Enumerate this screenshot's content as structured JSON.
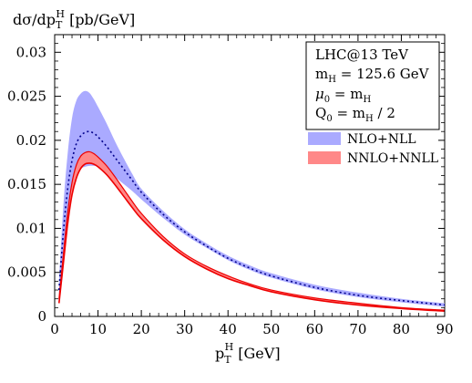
{
  "chart_data": {
    "type": "area",
    "ylabel": "dσ/dp_T^H [pb/GeV]",
    "xlabel": "p_T^H [GeV]",
    "xlim": [
      0,
      90
    ],
    "ylim": [
      0,
      0.032
    ],
    "xticks": [
      0,
      10,
      20,
      30,
      40,
      50,
      60,
      70,
      80,
      90
    ],
    "yticks": [
      0,
      0.005,
      0.01,
      0.015,
      0.02,
      0.025,
      0.03
    ],
    "ytick_labels": [
      "0",
      "0.005",
      "0.01",
      "0.015",
      "0.02",
      "0.025",
      "0.03"
    ],
    "xtick_labels": [
      "0",
      "10",
      "20",
      "30",
      "40",
      "50",
      "60",
      "70",
      "80",
      "90"
    ],
    "grid": false,
    "info_box": [
      "LHC@13 TeV",
      "m_H = 125.6 GeV",
      "μ_0 = m_H",
      "Q_0 = m_H / 2"
    ],
    "legend_position": "right",
    "series": [
      {
        "name": "NLO+NLL",
        "color": "#aaaaff",
        "central_style": "dotted",
        "central_color": "#00008b",
        "x": [
          1,
          2,
          3,
          4,
          5,
          6,
          7,
          8,
          9,
          10,
          12,
          14,
          16,
          18,
          20,
          25,
          30,
          35,
          40,
          45,
          50,
          60,
          70,
          80,
          90
        ],
        "lower": [
          0.0022,
          0.0075,
          0.0115,
          0.0145,
          0.0162,
          0.0168,
          0.017,
          0.0171,
          0.0171,
          0.017,
          0.0165,
          0.0158,
          0.015,
          0.0142,
          0.0133,
          0.0112,
          0.0093,
          0.0078,
          0.0064,
          0.0053,
          0.0044,
          0.0031,
          0.0022,
          0.0016,
          0.0011
        ],
        "central": [
          0.003,
          0.0095,
          0.0145,
          0.0177,
          0.0196,
          0.0205,
          0.0209,
          0.021,
          0.0208,
          0.0204,
          0.0193,
          0.018,
          0.0167,
          0.0154,
          0.0141,
          0.0116,
          0.0096,
          0.008,
          0.0066,
          0.0055,
          0.0046,
          0.0033,
          0.0024,
          0.0018,
          0.0013
        ],
        "upper": [
          0.004,
          0.0125,
          0.0185,
          0.0225,
          0.0245,
          0.0253,
          0.0256,
          0.0254,
          0.0247,
          0.0238,
          0.0219,
          0.0198,
          0.0179,
          0.0161,
          0.0145,
          0.012,
          0.0099,
          0.0083,
          0.0069,
          0.0058,
          0.0049,
          0.0036,
          0.0027,
          0.002,
          0.0015
        ]
      },
      {
        "name": "NNLO+NNLL",
        "color": "#ff8888",
        "edge_color": "#ee0000",
        "x": [
          1,
          2,
          3,
          4,
          5,
          6,
          7,
          8,
          9,
          10,
          12,
          14,
          16,
          18,
          20,
          25,
          30,
          35,
          40,
          45,
          50,
          60,
          70,
          80,
          90
        ],
        "lower": [
          0.0015,
          0.006,
          0.0105,
          0.0138,
          0.0157,
          0.0168,
          0.0173,
          0.0174,
          0.0173,
          0.017,
          0.0161,
          0.0149,
          0.0136,
          0.0123,
          0.0111,
          0.0087,
          0.0068,
          0.0054,
          0.0043,
          0.0035,
          0.0028,
          0.0019,
          0.0013,
          0.0009,
          0.0006
        ],
        "upper": [
          0.002,
          0.007,
          0.0118,
          0.0152,
          0.0172,
          0.0182,
          0.0186,
          0.0187,
          0.0185,
          0.0181,
          0.0171,
          0.0158,
          0.0144,
          0.013,
          0.0117,
          0.0091,
          0.0071,
          0.0057,
          0.0046,
          0.0037,
          0.003,
          0.0021,
          0.0015,
          0.001,
          0.0007
        ]
      }
    ]
  }
}
